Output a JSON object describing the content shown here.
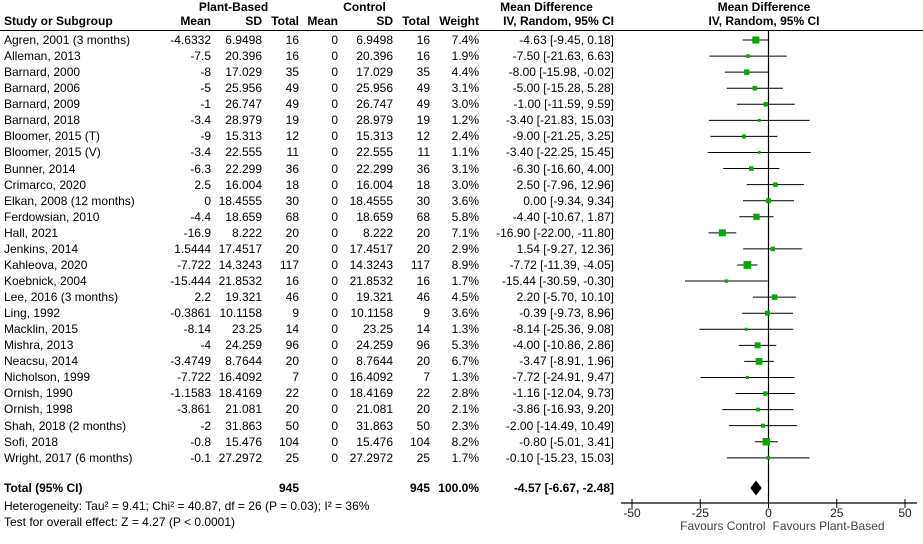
{
  "header": {
    "study": "Study or Subgroup",
    "group1": "Plant-Based",
    "group2": "Control",
    "mean": "Mean",
    "sd": "SD",
    "total": "Total",
    "weight": "Weight",
    "md_line1": "Mean Difference",
    "md_line2": "IV, Random, 95% CI"
  },
  "studies": [
    {
      "name": "Agren, 2001 (3 months)",
      "m1": "-4.6332",
      "sd1": "6.9498",
      "n1": "16",
      "m2": "0",
      "sd2": "6.9498",
      "n2": "16",
      "w": "7.4%",
      "ci": "-4.63 [-9.45, 0.18]",
      "md": -4.63,
      "lo": -9.45,
      "hi": 0.18,
      "wv": 7.4
    },
    {
      "name": "Alleman, 2013",
      "m1": "-7.5",
      "sd1": "20.396",
      "n1": "16",
      "m2": "0",
      "sd2": "20.396",
      "n2": "16",
      "w": "1.9%",
      "ci": "-7.50 [-21.63, 6.63]",
      "md": -7.5,
      "lo": -21.63,
      "hi": 6.63,
      "wv": 1.9
    },
    {
      "name": "Barnard, 2000",
      "m1": "-8",
      "sd1": "17.029",
      "n1": "35",
      "m2": "0",
      "sd2": "17.029",
      "n2": "35",
      "w": "4.4%",
      "ci": "-8.00 [-15.98, -0.02]",
      "md": -8,
      "lo": -15.98,
      "hi": -0.02,
      "wv": 4.4
    },
    {
      "name": "Barnard, 2006",
      "m1": "-5",
      "sd1": "25.956",
      "n1": "49",
      "m2": "0",
      "sd2": "25.956",
      "n2": "49",
      "w": "3.1%",
      "ci": "-5.00 [-15.28, 5.28]",
      "md": -5,
      "lo": -15.28,
      "hi": 5.28,
      "wv": 3.1
    },
    {
      "name": "Barnard, 2009",
      "m1": "-1",
      "sd1": "26.747",
      "n1": "49",
      "m2": "0",
      "sd2": "26.747",
      "n2": "49",
      "w": "3.0%",
      "ci": "-1.00 [-11.59, 9.59]",
      "md": -1,
      "lo": -11.59,
      "hi": 9.59,
      "wv": 3.0
    },
    {
      "name": "Barnard, 2018",
      "m1": "-3.4",
      "sd1": "28.979",
      "n1": "19",
      "m2": "0",
      "sd2": "28.979",
      "n2": "19",
      "w": "1.2%",
      "ci": "-3.40 [-21.83, 15.03]",
      "md": -3.4,
      "lo": -21.83,
      "hi": 15.03,
      "wv": 1.2
    },
    {
      "name": "Bloomer, 2015 (T)",
      "m1": "-9",
      "sd1": "15.313",
      "n1": "12",
      "m2": "0",
      "sd2": "15.313",
      "n2": "12",
      "w": "2.4%",
      "ci": "-9.00 [-21.25, 3.25]",
      "md": -9,
      "lo": -21.25,
      "hi": 3.25,
      "wv": 2.4
    },
    {
      "name": "Bloomer, 2015 (V)",
      "m1": "-3.4",
      "sd1": "22.555",
      "n1": "11",
      "m2": "0",
      "sd2": "22.555",
      "n2": "11",
      "w": "1.1%",
      "ci": "-3.40 [-22.25, 15.45]",
      "md": -3.4,
      "lo": -22.25,
      "hi": 15.45,
      "wv": 1.1
    },
    {
      "name": "Bunner, 2014",
      "m1": "-6.3",
      "sd1": "22.299",
      "n1": "36",
      "m2": "0",
      "sd2": "22.299",
      "n2": "36",
      "w": "3.1%",
      "ci": "-6.30 [-16.60, 4.00]",
      "md": -6.3,
      "lo": -16.6,
      "hi": 4.0,
      "wv": 3.1
    },
    {
      "name": "Crimarco, 2020",
      "m1": "2.5",
      "sd1": "16.004",
      "n1": "18",
      "m2": "0",
      "sd2": "16.004",
      "n2": "18",
      "w": "3.0%",
      "ci": "2.50 [-7.96, 12.96]",
      "md": 2.5,
      "lo": -7.96,
      "hi": 12.96,
      "wv": 3.0
    },
    {
      "name": "Elkan, 2008 (12 months)",
      "m1": "0",
      "sd1": "18.4555",
      "n1": "30",
      "m2": "0",
      "sd2": "18.4555",
      "n2": "30",
      "w": "3.6%",
      "ci": "0.00 [-9.34, 9.34]",
      "md": 0,
      "lo": -9.34,
      "hi": 9.34,
      "wv": 3.6
    },
    {
      "name": "Ferdowsian, 2010",
      "m1": "-4.4",
      "sd1": "18.659",
      "n1": "68",
      "m2": "0",
      "sd2": "18.659",
      "n2": "68",
      "w": "5.8%",
      "ci": "-4.40 [-10.67, 1.87]",
      "md": -4.4,
      "lo": -10.67,
      "hi": 1.87,
      "wv": 5.8
    },
    {
      "name": "Hall, 2021",
      "m1": "-16.9",
      "sd1": "8.222",
      "n1": "20",
      "m2": "0",
      "sd2": "8.222",
      "n2": "20",
      "w": "7.1%",
      "ci": "-16.90 [-22.00, -11.80]",
      "md": -16.9,
      "lo": -22.0,
      "hi": -11.8,
      "wv": 7.1
    },
    {
      "name": "Jenkins, 2014",
      "m1": "1.5444",
      "sd1": "17.4517",
      "n1": "20",
      "m2": "0",
      "sd2": "17.4517",
      "n2": "20",
      "w": "2.9%",
      "ci": "1.54 [-9.27, 12.36]",
      "md": 1.54,
      "lo": -9.27,
      "hi": 12.36,
      "wv": 2.9
    },
    {
      "name": "Kahleova, 2020",
      "m1": "-7.722",
      "sd1": "14.3243",
      "n1": "117",
      "m2": "0",
      "sd2": "14.3243",
      "n2": "117",
      "w": "8.9%",
      "ci": "-7.72 [-11.39, -4.05]",
      "md": -7.72,
      "lo": -11.39,
      "hi": -4.05,
      "wv": 8.9
    },
    {
      "name": "Koebnick, 2004",
      "m1": "-15.444",
      "sd1": "21.8532",
      "n1": "16",
      "m2": "0",
      "sd2": "21.8532",
      "n2": "16",
      "w": "1.7%",
      "ci": "-15.44 [-30.59, -0.30]",
      "md": -15.44,
      "lo": -30.59,
      "hi": -0.3,
      "wv": 1.7
    },
    {
      "name": "Lee, 2016 (3 months)",
      "m1": "2.2",
      "sd1": "19.321",
      "n1": "46",
      "m2": "0",
      "sd2": "19.321",
      "n2": "46",
      "w": "4.5%",
      "ci": "2.20 [-5.70, 10.10]",
      "md": 2.2,
      "lo": -5.7,
      "hi": 10.1,
      "wv": 4.5
    },
    {
      "name": "Ling, 1992",
      "m1": "-0.3861",
      "sd1": "10.1158",
      "n1": "9",
      "m2": "0",
      "sd2": "10.1158",
      "n2": "9",
      "w": "3.6%",
      "ci": "-0.39 [-9.73, 8.96]",
      "md": -0.39,
      "lo": -9.73,
      "hi": 8.96,
      "wv": 3.6
    },
    {
      "name": "Macklin, 2015",
      "m1": "-8.14",
      "sd1": "23.25",
      "n1": "14",
      "m2": "0",
      "sd2": "23.25",
      "n2": "14",
      "w": "1.3%",
      "ci": "-8.14 [-25.36, 9.08]",
      "md": -8.14,
      "lo": -25.36,
      "hi": 9.08,
      "wv": 1.3
    },
    {
      "name": "Mishra, 2013",
      "m1": "-4",
      "sd1": "24.259",
      "n1": "96",
      "m2": "0",
      "sd2": "24.259",
      "n2": "96",
      "w": "5.3%",
      "ci": "-4.00 [-10.86, 2.86]",
      "md": -4,
      "lo": -10.86,
      "hi": 2.86,
      "wv": 5.3
    },
    {
      "name": "Neacsu, 2014",
      "m1": "-3.4749",
      "sd1": "8.7644",
      "n1": "20",
      "m2": "0",
      "sd2": "8.7644",
      "n2": "20",
      "w": "6.7%",
      "ci": "-3.47 [-8.91, 1.96]",
      "md": -3.47,
      "lo": -8.91,
      "hi": 1.96,
      "wv": 6.7
    },
    {
      "name": "Nicholson, 1999",
      "m1": "-7.722",
      "sd1": "16.4092",
      "n1": "7",
      "m2": "0",
      "sd2": "16.4092",
      "n2": "7",
      "w": "1.3%",
      "ci": "-7.72 [-24.91, 9.47]",
      "md": -7.72,
      "lo": -24.91,
      "hi": 9.47,
      "wv": 1.3
    },
    {
      "name": "Ornish, 1990",
      "m1": "-1.1583",
      "sd1": "18.4169",
      "n1": "22",
      "m2": "0",
      "sd2": "18.4169",
      "n2": "22",
      "w": "2.8%",
      "ci": "-1.16 [-12.04, 9.73]",
      "md": -1.16,
      "lo": -12.04,
      "hi": 9.73,
      "wv": 2.8
    },
    {
      "name": "Ornish, 1998",
      "m1": "-3.861",
      "sd1": "21.081",
      "n1": "20",
      "m2": "0",
      "sd2": "21.081",
      "n2": "20",
      "w": "2.1%",
      "ci": "-3.86 [-16.93, 9.20]",
      "md": -3.86,
      "lo": -16.93,
      "hi": 9.2,
      "wv": 2.1
    },
    {
      "name": "Shah, 2018 (2 months)",
      "m1": "-2",
      "sd1": "31.863",
      "n1": "50",
      "m2": "0",
      "sd2": "31.863",
      "n2": "50",
      "w": "2.3%",
      "ci": "-2.00 [-14.49, 10.49]",
      "md": -2,
      "lo": -14.49,
      "hi": 10.49,
      "wv": 2.3
    },
    {
      "name": "Sofi, 2018",
      "m1": "-0.8",
      "sd1": "15.476",
      "n1": "104",
      "m2": "0",
      "sd2": "15.476",
      "n2": "104",
      "w": "8.2%",
      "ci": "-0.80 [-5.01, 3.41]",
      "md": -0.8,
      "lo": -5.01,
      "hi": 3.41,
      "wv": 8.2
    },
    {
      "name": "Wright, 2017 (6 months)",
      "m1": "-0.1",
      "sd1": "27.2972",
      "n1": "25",
      "m2": "0",
      "sd2": "27.2972",
      "n2": "25",
      "w": "1.7%",
      "ci": "-0.10 [-15.23, 15.03]",
      "md": -0.1,
      "lo": -15.23,
      "hi": 15.03,
      "wv": 1.7
    }
  ],
  "total": {
    "label": "Total (95% CI)",
    "n1": "945",
    "n2": "945",
    "w": "100.0%",
    "ci": "-4.57 [-6.67, -2.48]",
    "md": -4.57,
    "lo": -6.67,
    "hi": -2.48
  },
  "footnotes": {
    "heterogeneity": "Heterogeneity: Tau² = 9.41; Chi² = 40.87, df = 26 (P = 0.03); I² = 36%",
    "overall": "Test for overall effect: Z = 4.27 (P < 0.0001)"
  },
  "axis": {
    "min": -50,
    "max": 50,
    "ticks": [
      "-50",
      "-25",
      "0",
      "25",
      "50"
    ],
    "tick_values": [
      -50,
      -25,
      0,
      25,
      50
    ],
    "favours_left": "Favours Control",
    "favours_right": "Favours Plant-Based"
  },
  "colors": {
    "marker": "#00a800",
    "line": "#000000",
    "diamond": "#000000",
    "tick_text": "#222222",
    "favours_text": "#444444"
  },
  "chart_data": {
    "type": "scatter",
    "subtype": "forest-plot",
    "title": "Mean Difference, IV, Random, 95% CI",
    "studies": [
      "Agren, 2001 (3 months)",
      "Alleman, 2013",
      "Barnard, 2000",
      "Barnard, 2006",
      "Barnard, 2009",
      "Barnard, 2018",
      "Bloomer, 2015 (T)",
      "Bloomer, 2015 (V)",
      "Bunner, 2014",
      "Crimarco, 2020",
      "Elkan, 2008 (12 months)",
      "Ferdowsian, 2010",
      "Hall, 2021",
      "Jenkins, 2014",
      "Kahleova, 2020",
      "Koebnick, 2004",
      "Lee, 2016 (3 months)",
      "Ling, 1992",
      "Macklin, 2015",
      "Mishra, 2013",
      "Neacsu, 2014",
      "Nicholson, 1999",
      "Ornish, 1990",
      "Ornish, 1998",
      "Shah, 2018 (2 months)",
      "Sofi, 2018",
      "Wright, 2017 (6 months)"
    ],
    "mean_difference": [
      -4.63,
      -7.5,
      -8,
      -5,
      -1,
      -3.4,
      -9,
      -3.4,
      -6.3,
      2.5,
      0,
      -4.4,
      -16.9,
      1.54,
      -7.72,
      -15.44,
      2.2,
      -0.39,
      -8.14,
      -4,
      -3.47,
      -7.72,
      -1.16,
      -3.86,
      -2,
      -0.8,
      -0.1
    ],
    "ci_low": [
      -9.45,
      -21.63,
      -15.98,
      -15.28,
      -11.59,
      -21.83,
      -21.25,
      -22.25,
      -16.6,
      -7.96,
      -9.34,
      -10.67,
      -22,
      -9.27,
      -11.39,
      -30.59,
      -5.7,
      -9.73,
      -25.36,
      -10.86,
      -8.91,
      -24.91,
      -12.04,
      -16.93,
      -14.49,
      -5.01,
      -15.23
    ],
    "ci_high": [
      0.18,
      6.63,
      -0.02,
      5.28,
      9.59,
      15.03,
      3.25,
      15.45,
      4,
      12.96,
      9.34,
      1.87,
      -11.8,
      12.36,
      -4.05,
      -0.3,
      10.1,
      8.96,
      9.08,
      2.86,
      1.96,
      9.47,
      9.73,
      9.2,
      10.49,
      3.41,
      15.03
    ],
    "weight_pct": [
      7.4,
      1.9,
      4.4,
      3.1,
      3.0,
      1.2,
      2.4,
      1.1,
      3.1,
      3.0,
      3.6,
      5.8,
      7.1,
      2.9,
      8.9,
      1.7,
      4.5,
      3.6,
      1.3,
      5.3,
      6.7,
      1.3,
      2.8,
      2.1,
      2.3,
      8.2,
      1.7
    ],
    "pooled": {
      "label": "Total (95% CI)",
      "mean_difference": -4.57,
      "ci_low": -6.67,
      "ci_high": -2.48,
      "weight_pct": 100.0,
      "n_plant_based": 945,
      "n_control": 945
    },
    "xlim": [
      -50,
      50
    ],
    "xticks": [
      -50,
      -25,
      0,
      25,
      50
    ],
    "xlabel": "Favours Control / Favours Plant-Based",
    "legend_position": "none",
    "grid": false
  }
}
